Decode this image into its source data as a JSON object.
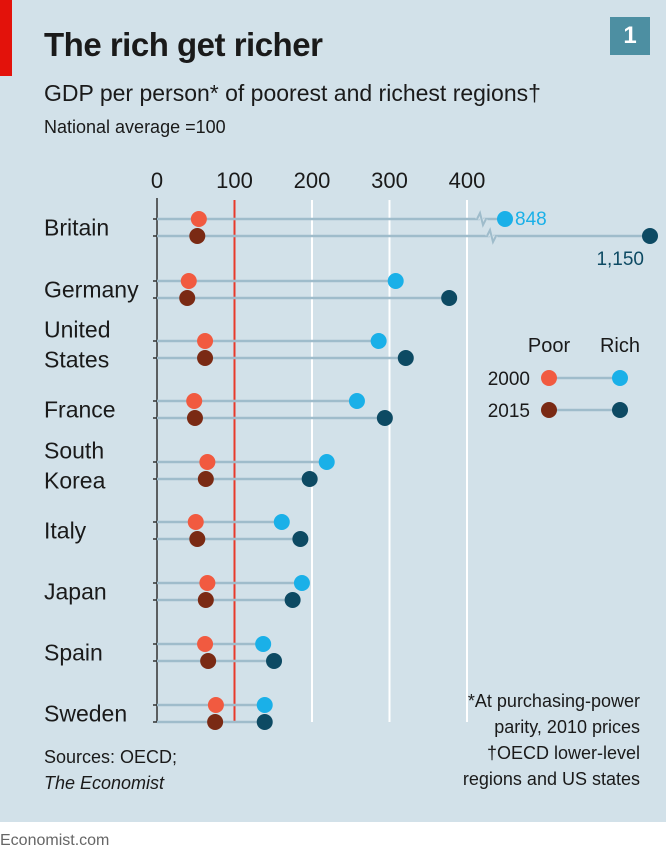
{
  "badge": "1",
  "chart_data": {
    "type": "dumbbell",
    "title": "The rich get richer",
    "subtitle": "GDP per person* of poorest and richest regions†",
    "unit_note": "National average =100",
    "x_ticks": [
      0,
      100,
      200,
      300,
      400
    ],
    "xlim": [
      0,
      400
    ],
    "axis_break_above": 400,
    "reference_line": 100,
    "legend": {
      "col_labels": [
        "Poor",
        "Rich"
      ],
      "row_labels": [
        "2000",
        "2015"
      ],
      "placement": "right"
    },
    "colors": {
      "poor_2000": "#f15a40",
      "poor_2015": "#7a2a14",
      "rich_2000": "#1ab0e8",
      "rich_2015": "#0d4a63",
      "reference": "#e8392a"
    },
    "categories": [
      "Britain",
      "Germany",
      "United States",
      "France",
      "South Korea",
      "Italy",
      "Japan",
      "Spain",
      "Sweden"
    ],
    "category_lines": [
      [
        "Britain"
      ],
      [
        "Germany"
      ],
      [
        "United",
        "States"
      ],
      [
        "France"
      ],
      [
        "South",
        "Korea"
      ],
      [
        "Italy"
      ],
      [
        "Japan"
      ],
      [
        "Spain"
      ],
      [
        "Sweden"
      ]
    ],
    "series": [
      {
        "name": "2000",
        "poor": [
          54,
          41,
          62,
          48,
          65,
          50,
          65,
          62,
          76
        ],
        "rich": [
          848,
          308,
          286,
          258,
          219,
          161,
          187,
          137,
          139
        ]
      },
      {
        "name": "2015",
        "poor": [
          52,
          39,
          62,
          49,
          63,
          52,
          63,
          66,
          75
        ],
        "rich": [
          1150,
          377,
          321,
          294,
          197,
          185,
          175,
          151,
          139
        ]
      }
    ],
    "data_labels": [
      {
        "text": "848"
      },
      {
        "text": "1,150"
      }
    ]
  },
  "notes": [
    "*At purchasing-power",
    "parity, 2010 prices",
    "†OECD lower-level",
    "regions and US states"
  ],
  "sources": [
    "Sources: OECD;",
    "The Economist"
  ],
  "footer": "Economist.com"
}
